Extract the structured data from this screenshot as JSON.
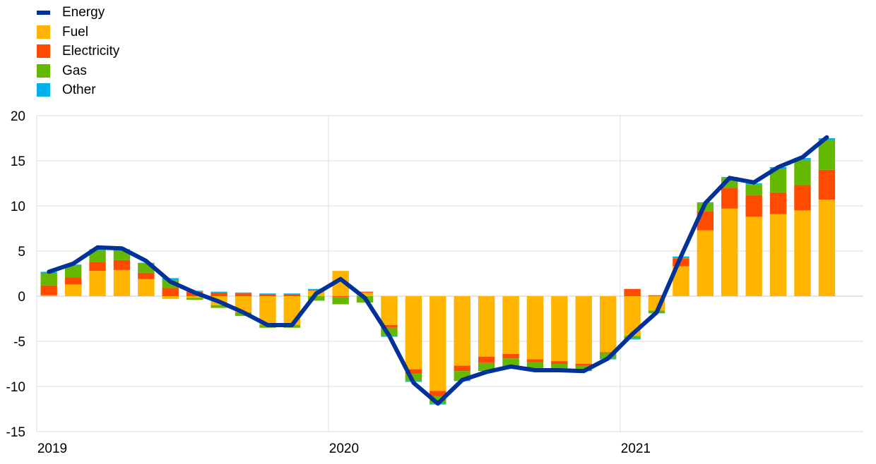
{
  "chart_data": {
    "type": "bar",
    "stacked": true,
    "x": [
      "2019-01",
      "2019-02",
      "2019-03",
      "2019-04",
      "2019-05",
      "2019-06",
      "2019-07",
      "2019-08",
      "2019-09",
      "2019-10",
      "2019-11",
      "2019-12",
      "2020-01",
      "2020-02",
      "2020-03",
      "2020-04",
      "2020-05",
      "2020-06",
      "2020-07",
      "2020-08",
      "2020-09",
      "2020-10",
      "2020-11",
      "2020-12",
      "2021-01",
      "2021-02",
      "2021-03",
      "2021-04",
      "2021-05",
      "2021-06",
      "2021-07",
      "2021-08",
      "2021-09",
      "2021-10"
    ],
    "x_tick_labels": [
      "2019",
      "2020",
      "2021"
    ],
    "ylim": [
      -15,
      20
    ],
    "y_ticks": [
      20,
      15,
      10,
      5,
      0,
      -5,
      -10,
      -15
    ],
    "grid": true,
    "legend_position": "top-left",
    "series": [
      {
        "name": "Fuel",
        "type": "bar",
        "color": "#FFB400",
        "values": [
          0.1,
          1.3,
          2.8,
          2.9,
          1.9,
          -0.3,
          -0.2,
          -1.0,
          -1.8,
          -3.2,
          -3.2,
          0.6,
          2.8,
          0.4,
          -3.2,
          -8.1,
          -10.5,
          -7.7,
          -6.7,
          -6.4,
          -7.0,
          -7.2,
          -7.5,
          -6.2,
          -4.4,
          -1.6,
          3.3,
          7.3,
          9.7,
          8.8,
          9.1,
          9.5,
          10.7,
          0
        ]
      },
      {
        "name": "Electricity",
        "type": "bar",
        "color": "#FF4B00",
        "values": [
          1.1,
          0.8,
          1.0,
          1.1,
          0.7,
          0.9,
          0.5,
          0.4,
          0.3,
          0.2,
          0.2,
          0.1,
          -0.1,
          0.1,
          -0.3,
          -0.5,
          -0.6,
          -0.6,
          -0.7,
          -0.5,
          -0.3,
          -0.3,
          -0.2,
          -0.1,
          0.8,
          0.1,
          0.9,
          2.1,
          2.3,
          2.4,
          2.4,
          2.8,
          3.3,
          0
        ]
      },
      {
        "name": "Gas",
        "type": "bar",
        "color": "#65B800",
        "values": [
          1.3,
          1.3,
          1.3,
          1.1,
          1.0,
          0.9,
          -0.2,
          -0.3,
          -0.4,
          -0.3,
          -0.3,
          -0.5,
          -0.8,
          -0.7,
          -0.9,
          -0.8,
          -0.8,
          -1.0,
          -0.8,
          -0.8,
          -0.6,
          -0.5,
          -0.5,
          -0.6,
          -0.3,
          -0.2,
          0.1,
          0.9,
          1.1,
          1.2,
          2.6,
          2.8,
          3.3,
          0
        ]
      },
      {
        "name": "Other",
        "type": "bar",
        "color": "#00B1EA",
        "values": [
          0.2,
          0.1,
          0.1,
          0.1,
          0.1,
          0.2,
          0.1,
          0.1,
          0.1,
          0.1,
          0.1,
          0.1,
          0.0,
          0.0,
          -0.1,
          -0.1,
          -0.1,
          -0.1,
          -0.1,
          -0.1,
          -0.1,
          -0.1,
          -0.1,
          -0.1,
          -0.1,
          -0.1,
          0.1,
          0.1,
          0.1,
          0.1,
          0.2,
          0.2,
          0.2,
          0
        ]
      },
      {
        "name": "Energy",
        "type": "line",
        "color": "#003299",
        "values": [
          2.7,
          3.6,
          5.4,
          5.3,
          3.9,
          1.6,
          0.4,
          -0.6,
          -1.8,
          -3.2,
          -3.2,
          0.3,
          1.9,
          -0.2,
          -4.4,
          -9.6,
          -11.9,
          -9.3,
          -8.4,
          -7.8,
          -8.2,
          -8.2,
          -8.3,
          -6.9,
          -4.2,
          -1.8,
          4.4,
          10.3,
          13.1,
          12.6,
          14.3,
          15.4,
          17.6,
          null
        ]
      }
    ]
  }
}
